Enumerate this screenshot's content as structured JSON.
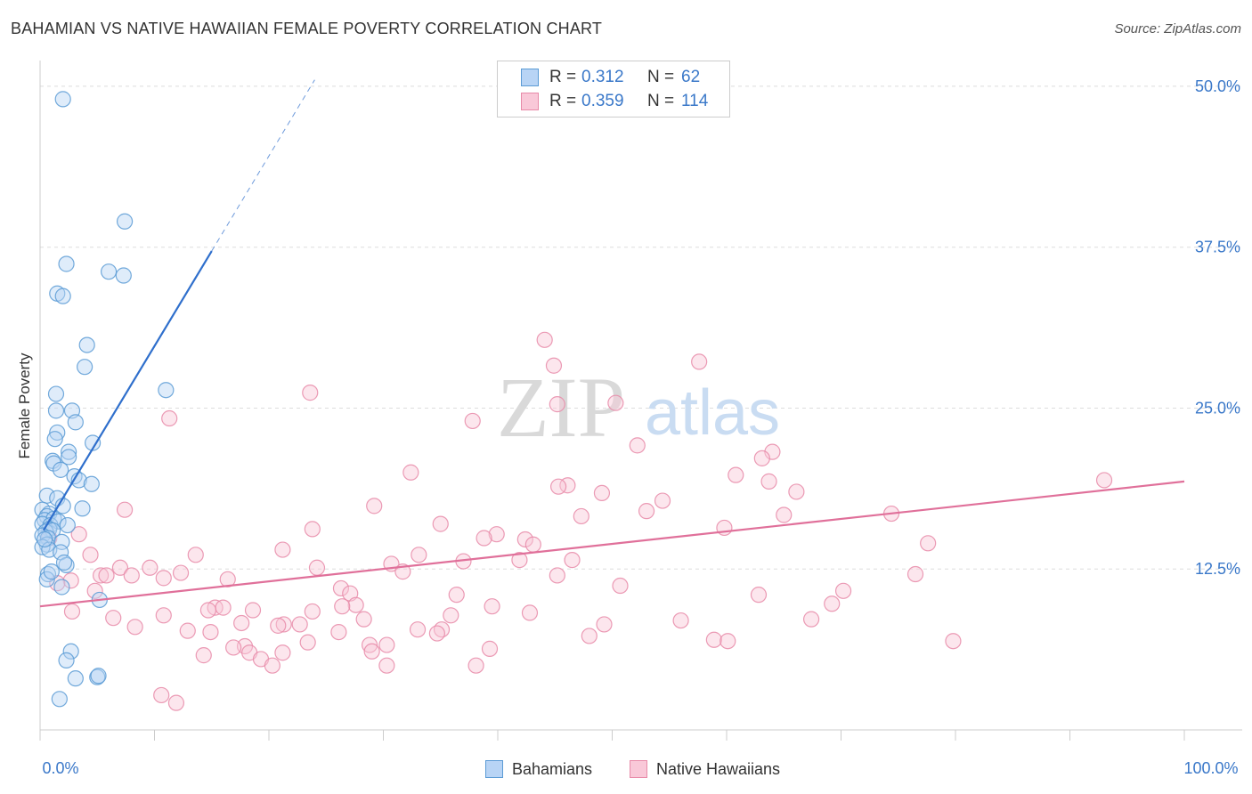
{
  "title": "BAHAMIAN VS NATIVE HAWAIIAN FEMALE POVERTY CORRELATION CHART",
  "source": "Source: ZipAtlas.com",
  "watermark": {
    "zip": "ZIP",
    "atlas": "atlas"
  },
  "colors": {
    "blue": "#5b9bd5",
    "blue_fill": "#b8d4f5",
    "blue_line": "#2f6fcc",
    "pink": "#e88aa8",
    "pink_fill": "#f9c8d8",
    "pink_line": "#e0709a",
    "tick_text": "#3a78c9",
    "grid": "#dddddd"
  },
  "legend": {
    "rows": [
      {
        "r_label": "R =",
        "r_value": "0.312",
        "n_label": "N =",
        "n_value": "62"
      },
      {
        "r_label": "R =",
        "r_value": "0.359",
        "n_label": "N =",
        "n_value": "114"
      }
    ]
  },
  "chart_data": {
    "type": "scatter",
    "title": "BAHAMIAN VS NATIVE HAWAIIAN FEMALE POVERTY CORRELATION CHART",
    "xlabel": "",
    "ylabel": "Female Poverty",
    "xlim": [
      0,
      100
    ],
    "ylim": [
      0,
      52
    ],
    "x_ticks": [
      0,
      10,
      20,
      30,
      40,
      50,
      60,
      70,
      80,
      90,
      100
    ],
    "x_tick_labels": {
      "left": "0.0%",
      "right": "100.0%"
    },
    "y_ticks": [
      12.5,
      25.0,
      37.5,
      50.0
    ],
    "y_tick_labels": [
      "12.5%",
      "25.0%",
      "37.5%",
      "50.0%"
    ],
    "legend_bottom": [
      "Bahamians",
      "Native Hawaiians"
    ],
    "series": [
      {
        "name": "Bahamians",
        "r": 0.312,
        "n": 62,
        "trend": {
          "x0": 0.3,
          "y0": 15.5,
          "x1": 15.0,
          "y1": 37.2,
          "dash_x1": 24.0,
          "dash_y1": 50.5
        },
        "points": [
          [
            2.0,
            49.0
          ],
          [
            7.4,
            39.5
          ],
          [
            2.3,
            36.2
          ],
          [
            6.0,
            35.6
          ],
          [
            7.3,
            35.3
          ],
          [
            1.5,
            33.9
          ],
          [
            2.0,
            33.7
          ],
          [
            4.1,
            29.9
          ],
          [
            3.9,
            28.2
          ],
          [
            11.0,
            26.4
          ],
          [
            1.4,
            26.1
          ],
          [
            1.4,
            24.8
          ],
          [
            2.8,
            24.8
          ],
          [
            3.1,
            23.9
          ],
          [
            1.5,
            23.1
          ],
          [
            1.3,
            22.6
          ],
          [
            4.6,
            22.3
          ],
          [
            2.5,
            21.6
          ],
          [
            2.5,
            21.2
          ],
          [
            1.1,
            20.9
          ],
          [
            1.2,
            20.7
          ],
          [
            1.8,
            20.2
          ],
          [
            3.0,
            19.7
          ],
          [
            3.4,
            19.4
          ],
          [
            4.5,
            19.1
          ],
          [
            0.6,
            18.2
          ],
          [
            1.5,
            18.0
          ],
          [
            0.2,
            17.1
          ],
          [
            2.0,
            17.4
          ],
          [
            3.7,
            17.2
          ],
          [
            0.8,
            16.8
          ],
          [
            0.6,
            16.6
          ],
          [
            0.4,
            16.3
          ],
          [
            1.2,
            16.4
          ],
          [
            0.2,
            16.0
          ],
          [
            0.9,
            15.9
          ],
          [
            1.6,
            16.2
          ],
          [
            0.8,
            15.6
          ],
          [
            2.4,
            15.9
          ],
          [
            0.5,
            15.4
          ],
          [
            1.1,
            15.5
          ],
          [
            0.2,
            15.1
          ],
          [
            0.7,
            14.9
          ],
          [
            0.6,
            14.4
          ],
          [
            1.9,
            14.6
          ],
          [
            0.2,
            14.2
          ],
          [
            0.8,
            14.0
          ],
          [
            1.8,
            13.8
          ],
          [
            2.3,
            12.8
          ],
          [
            0.7,
            12.1
          ],
          [
            0.6,
            11.7
          ],
          [
            1.9,
            11.1
          ],
          [
            5.2,
            10.1
          ],
          [
            2.7,
            6.1
          ],
          [
            2.3,
            5.4
          ],
          [
            3.1,
            4.0
          ],
          [
            5.0,
            4.1
          ],
          [
            5.1,
            4.2
          ],
          [
            1.7,
            2.4
          ],
          [
            0.4,
            14.8
          ],
          [
            1.0,
            12.3
          ],
          [
            2.1,
            13.0
          ]
        ]
      },
      {
        "name": "Native Hawaiians",
        "r": 0.359,
        "n": 114,
        "trend": {
          "x0": 0,
          "y0": 9.6,
          "x1": 100,
          "y1": 19.3
        },
        "points": [
          [
            44.1,
            30.3
          ],
          [
            44.9,
            28.3
          ],
          [
            57.6,
            28.6
          ],
          [
            23.6,
            26.2
          ],
          [
            45.2,
            25.3
          ],
          [
            50.3,
            25.4
          ],
          [
            11.3,
            24.2
          ],
          [
            37.8,
            24.0
          ],
          [
            52.2,
            22.1
          ],
          [
            64.0,
            21.6
          ],
          [
            63.1,
            21.1
          ],
          [
            32.4,
            20.0
          ],
          [
            60.8,
            19.8
          ],
          [
            93.0,
            19.4
          ],
          [
            63.7,
            19.3
          ],
          [
            46.1,
            19.0
          ],
          [
            45.3,
            18.9
          ],
          [
            49.1,
            18.4
          ],
          [
            66.1,
            18.5
          ],
          [
            54.4,
            17.8
          ],
          [
            29.2,
            17.4
          ],
          [
            7.4,
            17.1
          ],
          [
            53.0,
            17.0
          ],
          [
            74.4,
            16.8
          ],
          [
            65.0,
            16.7
          ],
          [
            47.3,
            16.6
          ],
          [
            35.0,
            16.0
          ],
          [
            23.8,
            15.6
          ],
          [
            59.8,
            15.7
          ],
          [
            39.9,
            15.2
          ],
          [
            38.8,
            14.9
          ],
          [
            3.4,
            15.2
          ],
          [
            42.4,
            14.8
          ],
          [
            43.1,
            14.4
          ],
          [
            0.8,
            14.9
          ],
          [
            21.2,
            14.0
          ],
          [
            77.6,
            14.5
          ],
          [
            4.4,
            13.6
          ],
          [
            13.6,
            13.6
          ],
          [
            33.1,
            13.6
          ],
          [
            37.0,
            13.1
          ],
          [
            41.9,
            13.2
          ],
          [
            46.5,
            13.2
          ],
          [
            30.7,
            12.9
          ],
          [
            7.0,
            12.6
          ],
          [
            9.6,
            12.6
          ],
          [
            24.2,
            12.6
          ],
          [
            12.3,
            12.2
          ],
          [
            31.7,
            12.3
          ],
          [
            5.3,
            12.0
          ],
          [
            5.8,
            12.0
          ],
          [
            8.0,
            12.0
          ],
          [
            45.2,
            12.0
          ],
          [
            10.8,
            11.8
          ],
          [
            16.4,
            11.7
          ],
          [
            76.5,
            12.1
          ],
          [
            2.7,
            11.6
          ],
          [
            1.5,
            11.4
          ],
          [
            26.3,
            11.0
          ],
          [
            4.8,
            10.8
          ],
          [
            27.1,
            10.6
          ],
          [
            36.4,
            10.5
          ],
          [
            62.8,
            10.5
          ],
          [
            70.2,
            10.8
          ],
          [
            27.6,
            9.7
          ],
          [
            26.4,
            9.6
          ],
          [
            15.3,
            9.5
          ],
          [
            16.0,
            9.5
          ],
          [
            14.7,
            9.3
          ],
          [
            18.6,
            9.3
          ],
          [
            23.8,
            9.2
          ],
          [
            2.8,
            9.2
          ],
          [
            42.8,
            9.1
          ],
          [
            10.8,
            8.9
          ],
          [
            35.9,
            8.9
          ],
          [
            28.3,
            8.6
          ],
          [
            6.4,
            8.7
          ],
          [
            17.6,
            8.3
          ],
          [
            21.3,
            8.2
          ],
          [
            20.8,
            8.1
          ],
          [
            22.7,
            8.2
          ],
          [
            8.3,
            8.0
          ],
          [
            14.9,
            7.6
          ],
          [
            33.0,
            7.8
          ],
          [
            35.1,
            7.8
          ],
          [
            34.7,
            7.5
          ],
          [
            26.1,
            7.6
          ],
          [
            12.9,
            7.7
          ],
          [
            67.4,
            8.6
          ],
          [
            23.4,
            6.8
          ],
          [
            17.9,
            6.5
          ],
          [
            16.9,
            6.4
          ],
          [
            28.8,
            6.6
          ],
          [
            30.3,
            6.6
          ],
          [
            18.3,
            6.0
          ],
          [
            21.2,
            6.0
          ],
          [
            19.3,
            5.5
          ],
          [
            14.3,
            5.8
          ],
          [
            39.3,
            6.3
          ],
          [
            58.9,
            7.0
          ],
          [
            60.1,
            6.9
          ],
          [
            79.8,
            6.9
          ],
          [
            29.0,
            6.1
          ],
          [
            20.3,
            5.0
          ],
          [
            30.3,
            5.0
          ],
          [
            38.1,
            5.0
          ],
          [
            10.6,
            2.7
          ],
          [
            11.9,
            2.1
          ],
          [
            69.2,
            9.8
          ],
          [
            56.0,
            8.5
          ],
          [
            49.3,
            8.2
          ],
          [
            48.0,
            7.3
          ],
          [
            39.5,
            9.6
          ],
          [
            50.7,
            11.2
          ]
        ]
      }
    ]
  }
}
